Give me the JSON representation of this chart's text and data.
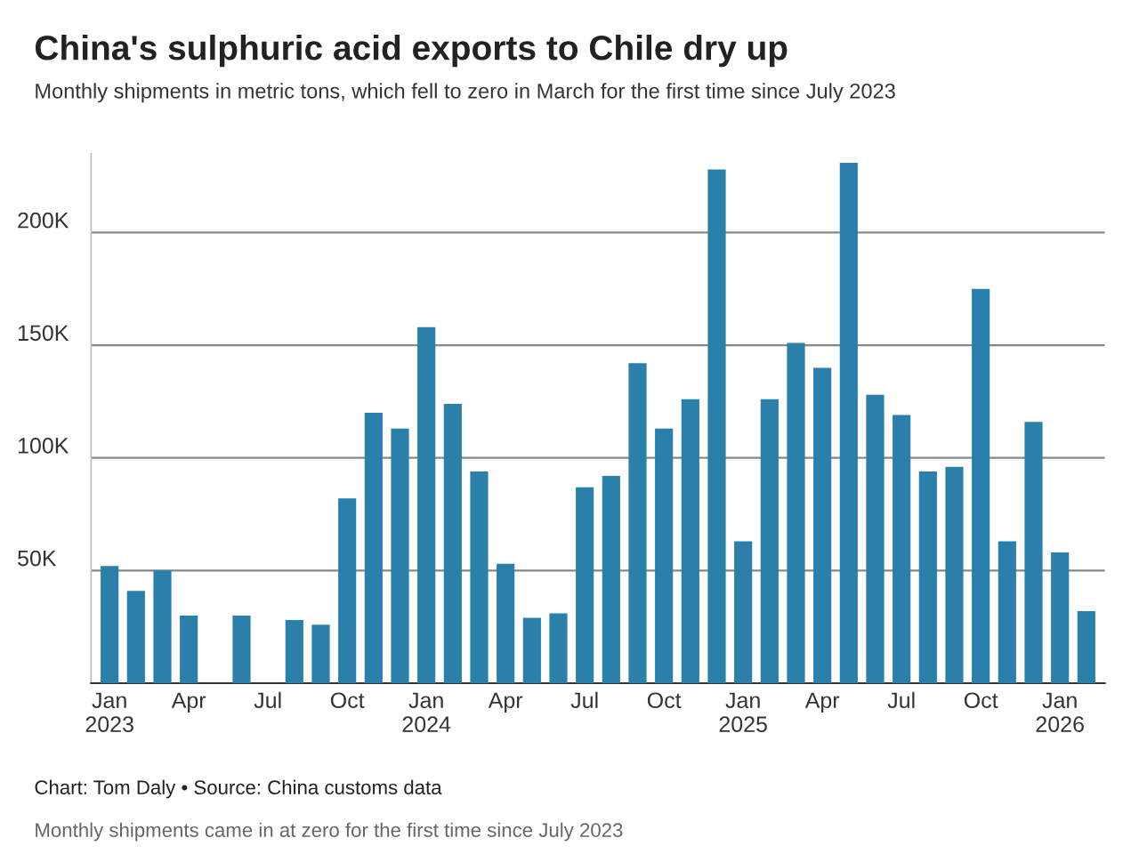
{
  "chart_data": {
    "type": "bar",
    "title": "China's sulphuric acid exports to Chile dry up",
    "subtitle": "Monthly shipments in metric tons, which fell to zero in March for the first time since July 2023",
    "categories": [
      "Jan\n2023",
      null,
      null,
      "Apr",
      null,
      null,
      "Jul",
      null,
      null,
      "Oct",
      null,
      null,
      "Jan\n2024",
      null,
      null,
      "Apr",
      null,
      null,
      "Jul",
      null,
      null,
      "Oct",
      null,
      null,
      "Jan\n2025",
      null,
      null,
      "Apr",
      null,
      null,
      "Jul",
      null,
      null,
      "Oct",
      null,
      null,
      "Jan\n2026",
      null
    ],
    "values": [
      52000,
      41000,
      50000,
      30000,
      0,
      30000,
      0,
      28000,
      26000,
      82000,
      120000,
      113000,
      158000,
      124000,
      94000,
      53000,
      29000,
      31000,
      87000,
      92000,
      142000,
      113000,
      126000,
      228000,
      63000,
      126000,
      151000,
      140000,
      231000,
      128000,
      119000,
      94000,
      96000,
      175000,
      63000,
      116000,
      58000,
      32000
    ],
    "color": "#2a7fab",
    "ylim": [
      0,
      235000
    ],
    "yticks": [
      {
        "value": 50000,
        "label": "50K"
      },
      {
        "value": 100000,
        "label": "100K"
      },
      {
        "value": 150000,
        "label": "150K"
      },
      {
        "value": 200000,
        "label": "200K"
      }
    ],
    "grid": "y",
    "annotations": [
      "Chart: Tom Daly • Source: China customs data",
      "Monthly shipments came in at zero for the first time since July 2023"
    ]
  }
}
